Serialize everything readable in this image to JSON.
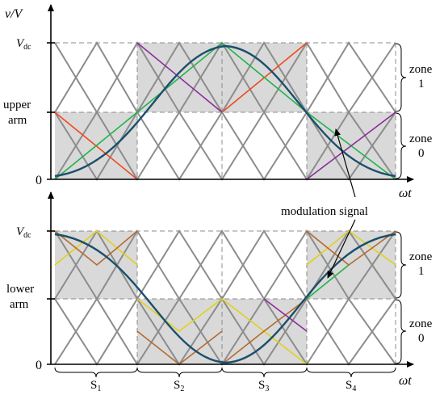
{
  "labels": {
    "y_axis": "v/V",
    "upper_vdc": "V",
    "upper_vdc_sub": "dc",
    "upper_zero": "0",
    "upper_arm_1": "upper",
    "upper_arm_2": "arm",
    "upper_omega": "ωt",
    "zone1_word": "zone",
    "zone1_num": "1",
    "zone0_word": "zone",
    "zone0_num": "0",
    "modulation": "modulation signal",
    "lower_vdc": "V",
    "lower_vdc_sub": "dc",
    "lower_zero": "0",
    "lower_arm_1": "lower",
    "lower_arm_2": "arm",
    "lower_omega": "ωt",
    "lower_zone1_word": "zone",
    "lower_zone1_num": "1",
    "lower_zone0_word": "zone",
    "lower_zone0_num": "0",
    "sectors": [
      {
        "main": "S",
        "sub": "1"
      },
      {
        "main": "S",
        "sub": "2"
      },
      {
        "main": "S",
        "sub": "3"
      },
      {
        "main": "S",
        "sub": "4"
      }
    ]
  },
  "colors": {
    "carrier": "#8c8c8c",
    "shade": "#d9d9d9",
    "modulation": "#1b4f6b",
    "green": "#22b24c",
    "purple": "#8b2c9c",
    "orange": "#ee4a1e",
    "yellow": "#e0d020",
    "brown": "#b56a2e",
    "dash": "#8c8c8c"
  }
}
